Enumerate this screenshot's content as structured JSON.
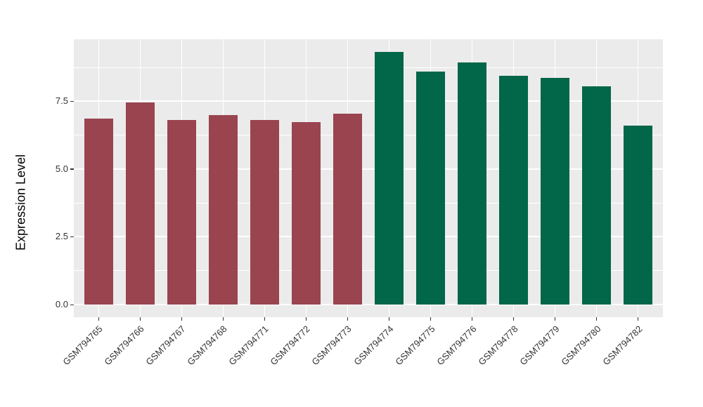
{
  "figure": {
    "background": "#FFFFFF"
  },
  "chart_data": {
    "type": "bar",
    "title": "",
    "xlabel": "",
    "ylabel": "Expression Level",
    "categories": [
      "GSM794765",
      "GSM794766",
      "GSM794767",
      "GSM794768",
      "GSM794771",
      "GSM794772",
      "GSM794773",
      "GSM794774",
      "GSM794775",
      "GSM794776",
      "GSM794778",
      "GSM794779",
      "GSM794780",
      "GSM794782"
    ],
    "values": [
      6.87,
      7.45,
      6.81,
      7.0,
      6.81,
      6.73,
      7.03,
      9.32,
      8.6,
      8.92,
      8.45,
      8.36,
      8.05,
      6.6
    ],
    "bar_colors": [
      "#9A4450",
      "#9A4450",
      "#9A4450",
      "#9A4450",
      "#9A4450",
      "#9A4450",
      "#9A4450",
      "#026649",
      "#026649",
      "#026649",
      "#026649",
      "#026649",
      "#026649",
      "#026649"
    ],
    "ylim": [
      0,
      9.8
    ],
    "yticks": [
      0.0,
      2.5,
      5.0,
      7.5
    ],
    "ytick_labels": [
      "0.0",
      "2.5",
      "5.0",
      "7.5"
    ],
    "minor_gridlines": [
      1.25,
      3.75,
      6.25,
      8.75
    ],
    "grid": "on",
    "legend": "none",
    "panel_background": "#EBEBEB",
    "gridline_color": "#FFFFFF",
    "axis_text_color": "#333333",
    "bar_relative_width": 0.7
  }
}
